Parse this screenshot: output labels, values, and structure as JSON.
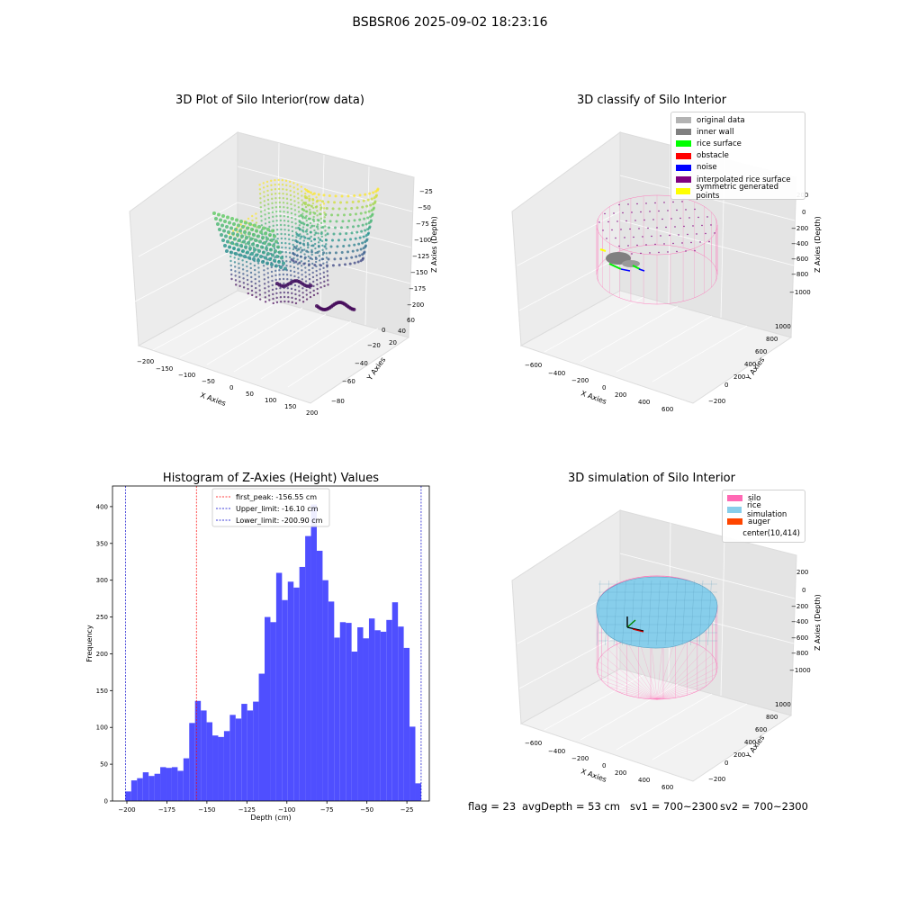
{
  "suptitle": "BSBSR06 2025-09-02 18:23:16",
  "panels": {
    "raw": {
      "title": "3D Plot of Silo Interior(row data)",
      "xlabel": "X Axies",
      "ylabel": "Y Axies",
      "zlabel": "Z Axies (Depth)",
      "xticks": [
        "−200",
        "−150",
        "−100",
        "−50",
        "0",
        "50",
        "100",
        "150",
        "200"
      ],
      "yticks": [
        "−80",
        "−60",
        "−40",
        "−20",
        "0",
        "20",
        "40",
        "60"
      ],
      "zticks": [
        "−25",
        "−50",
        "−75",
        "−100",
        "−125",
        "−150",
        "−175",
        "−200"
      ]
    },
    "classify": {
      "title": "3D classify of Silo Interior",
      "xlabel": "X Axies",
      "ylabel": "Y Axies",
      "zlabel": "Z Axies (Depth)",
      "xticks": [
        "−600",
        "−400",
        "−200",
        "0",
        "200",
        "400",
        "600"
      ],
      "yticks": [
        "−200",
        "0",
        "200",
        "400",
        "600",
        "800",
        "1000"
      ],
      "zticks": [
        "200",
        "0",
        "−200",
        "−400",
        "−600",
        "−800",
        "−1000"
      ],
      "legend": [
        {
          "label": "original data",
          "color": "#b3b3b3"
        },
        {
          "label": "inner wall",
          "color": "#808080"
        },
        {
          "label": "rice surface",
          "color": "#00ff00"
        },
        {
          "label": "obstacle",
          "color": "#ff0000"
        },
        {
          "label": "noise",
          "color": "#0000ff"
        },
        {
          "label": "interpolated rice surface",
          "color": "#800080"
        },
        {
          "label": "symmetric generated points",
          "color": "#ffff00"
        }
      ]
    },
    "simulation": {
      "title": "3D simulation of Silo Interior",
      "xlabel": "X Axies",
      "ylabel": "Y Axies",
      "zlabel": "Z Axies (Depth)",
      "xticks": [
        "−600",
        "−400",
        "−200",
        "0",
        "200",
        "400",
        "600"
      ],
      "yticks": [
        "−200",
        "0",
        "200",
        "400",
        "600",
        "800",
        "1000"
      ],
      "zticks": [
        "200",
        "0",
        "−200",
        "−400",
        "−600",
        "−800",
        "−1000"
      ],
      "legend": [
        {
          "label": "silo",
          "color": "#ff69b4"
        },
        {
          "label": "rice simulation",
          "color": "#87ceeb"
        },
        {
          "label": "auger",
          "color": "#ff4500"
        },
        {
          "label": "center(10,414)",
          "color": "#ffffff"
        }
      ]
    }
  },
  "chart_data": {
    "type": "bar",
    "title": "Histogram of Z-Axies (Height) Values",
    "xlabel": "Depth (cm)",
    "ylabel": "Frequency",
    "xlim": [
      -209,
      -11
    ],
    "ylim": [
      0,
      428
    ],
    "xticks": [
      -200,
      -175,
      -150,
      -125,
      -100,
      -75,
      -50,
      -25
    ],
    "yticks": [
      0,
      50,
      100,
      150,
      200,
      250,
      300,
      350,
      400
    ],
    "bar_color": "#4b4bff",
    "bins": {
      "start": -200.9,
      "end": -16.1,
      "values": [
        13,
        28,
        31,
        39,
        34,
        37,
        46,
        45,
        46,
        41,
        58,
        106,
        136,
        123,
        107,
        89,
        87,
        95,
        117,
        112,
        132,
        123,
        135,
        173,
        250,
        243,
        310,
        273,
        298,
        290,
        318,
        360,
        403,
        340,
        300,
        271,
        222,
        243,
        242,
        203,
        236,
        221,
        248,
        232,
        230,
        246,
        270,
        237,
        208,
        101,
        24
      ]
    },
    "vlines": [
      {
        "label": "first_peak: -156.55 cm",
        "x": -156.55,
        "color": "#ff0000"
      },
      {
        "label": "Upper_limit: -16.10 cm",
        "x": -16.1,
        "color": "#0000cc"
      },
      {
        "label": "Lower_limit: -200.90 cm",
        "x": -200.9,
        "color": "#0000cc"
      }
    ],
    "legend_position": "upper center"
  },
  "footer": {
    "flag": "flag = 23",
    "avg": "avgDepth = 53 cm",
    "sv1": "sv1 = 700~2300",
    "sv2": "sv2 = 700~2300"
  }
}
